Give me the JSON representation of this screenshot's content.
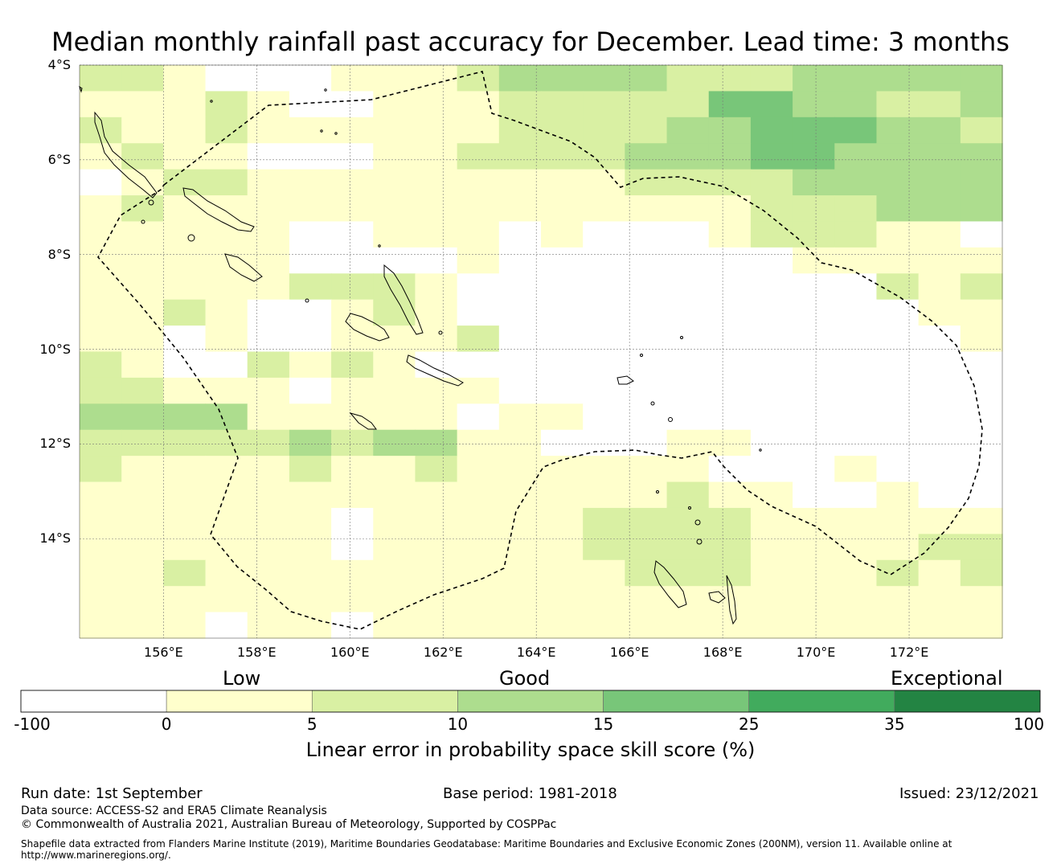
{
  "title": "Median monthly rainfall past accuracy for December. Lead time: 3 months",
  "map": {
    "lon_range": [
      154.2,
      174
    ],
    "lat_range": [
      -16.1,
      -4.0
    ],
    "cell_size_deg": 0.83,
    "lat_ticks": [
      {
        "value": -4,
        "label": "4°S"
      },
      {
        "value": -6,
        "label": "6°S"
      },
      {
        "value": -8,
        "label": "8°S"
      },
      {
        "value": -10,
        "label": "10°S"
      },
      {
        "value": -12,
        "label": "12°S"
      },
      {
        "value": -14,
        "label": "14°S"
      }
    ],
    "lon_ticks": [
      {
        "value": 156,
        "label": "156°E"
      },
      {
        "value": 158,
        "label": "158°E"
      },
      {
        "value": 160,
        "label": "160°E"
      },
      {
        "value": 162,
        "label": "162°E"
      },
      {
        "value": 164,
        "label": "164°E"
      },
      {
        "value": 166,
        "label": "166°E"
      },
      {
        "value": 168,
        "label": "168°E"
      },
      {
        "value": 170,
        "label": "170°E"
      },
      {
        "value": 172,
        "label": "172°E"
      }
    ],
    "grid_lines": true,
    "boundary_style": "dashed",
    "skill_grid_categories": [
      "2210001112333322233333",
      "1112100111222224433223",
      "2112111111222233444332",
      "1211000112222333443333",
      "0122111111111222233333",
      "1211111111111111222333",
      "1111100111010001222110",
      "1111100001000000011111",
      "1111122210000000000212",
      "1121001210000000000011",
      "1101001112000000000001",
      "2100212100000000000000",
      "2211101111000000000000",
      "3333111110110000000000",
      "2222232331100011000000",
      "2111121121111110001000",
      "1111111111111121100100",
      "1111110111112222111111",
      "1111110111112222111122",
      "1121111111111222111212",
      "1111111111111111111111",
      "1110110111111111111111"
    ]
  },
  "colorbar": {
    "labels": [
      "Low",
      "Good",
      "Exceptional"
    ],
    "ticks": [
      "-100",
      "0",
      "5",
      "10",
      "15",
      "25",
      "35",
      "100"
    ],
    "colors": [
      "#ffffff",
      "#ffffcc",
      "#d9f0a3",
      "#addd8e",
      "#78c679",
      "#41ab5d",
      "#238443"
    ],
    "title": "Linear error in probability space skill score (%)"
  },
  "footer": {
    "run_date": "Run date: 1st September",
    "base_period": "Base period: 1981-2018",
    "issued": "Issued: 23/12/2021",
    "data_source": "Data source: ACCESS-S2 and ERA5 Climate Reanalysis",
    "copyright": "© Commonwealth of Australia 2021, Australian Bureau of Meteorology, Supported by COSPPac",
    "shapefile_line1": "Shapefile data extracted from Flanders Marine Institute (2019), Maritime Boundaries Geodatabase: Maritime Boundaries and Exclusive Economic Zones (200NM), version 11. Available online at",
    "shapefile_line2": "http://www.marineregions.org/."
  }
}
